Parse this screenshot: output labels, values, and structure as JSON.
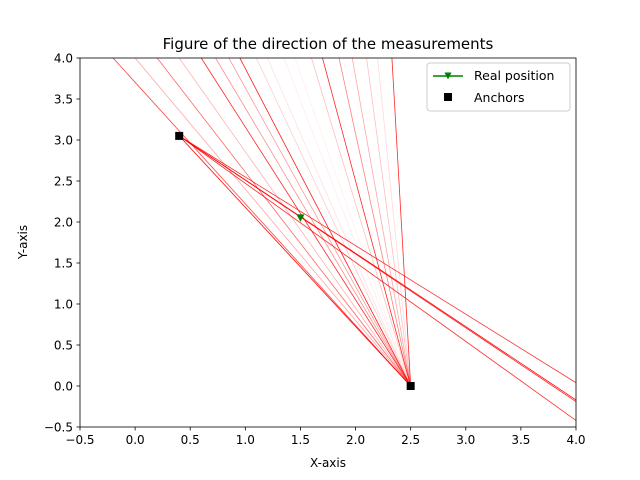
{
  "chart_data": {
    "type": "scatter",
    "title": "Figure of the direction of the measurements",
    "xlabel": "X-axis",
    "ylabel": "Y-axis",
    "xlim": [
      -0.5,
      4.0
    ],
    "ylim": [
      -0.5,
      4.0
    ],
    "xticks": [
      "−0.5",
      "0.0",
      "0.5",
      "1.0",
      "1.5",
      "2.0",
      "2.5",
      "3.0",
      "3.5",
      "4.0"
    ],
    "yticks": [
      "−0.5",
      "0.0",
      "0.5",
      "1.0",
      "1.5",
      "2.0",
      "2.5",
      "3.0",
      "3.5",
      "4.0"
    ],
    "grid": false,
    "legend_position": "top-right",
    "series": [
      {
        "name": "Real position",
        "marker": "triangle-down",
        "color": "#008000",
        "points": [
          {
            "x": 1.5,
            "y": 2.05
          }
        ]
      },
      {
        "name": "Anchors",
        "marker": "square",
        "color": "#000000",
        "points": [
          {
            "x": 0.4,
            "y": 3.05
          },
          {
            "x": 2.5,
            "y": 0.0
          }
        ]
      }
    ],
    "measurement_rays": {
      "color": "#ff0000",
      "from_anchor_1": [
        {
          "to": [
            4.0,
            0.04
          ],
          "opacity": 0.85
        },
        {
          "to": [
            4.0,
            -0.17
          ],
          "opacity": 0.95
        },
        {
          "to": [
            4.0,
            -0.19
          ],
          "opacity": 0.9
        },
        {
          "to": [
            4.0,
            -0.42
          ],
          "opacity": 0.85
        },
        {
          "to": [
            2.5,
            0.0
          ],
          "opacity": 0.7
        },
        {
          "to": [
            2.5,
            0.0
          ],
          "opacity": 0.5
        },
        {
          "to": [
            2.5,
            0.0
          ],
          "opacity": 0.35
        }
      ],
      "from_anchor_2": [
        {
          "to": [
            -0.2,
            4.0
          ],
          "opacity": 0.75
        },
        {
          "to": [
            0.0,
            4.0
          ],
          "opacity": 0.35
        },
        {
          "to": [
            0.2,
            4.0
          ],
          "opacity": 0.6
        },
        {
          "to": [
            0.4,
            4.0
          ],
          "opacity": 0.3
        },
        {
          "to": [
            0.6,
            4.0
          ],
          "opacity": 0.85
        },
        {
          "to": [
            0.73,
            4.0
          ],
          "opacity": 0.45
        },
        {
          "to": [
            0.85,
            4.0
          ],
          "opacity": 0.4
        },
        {
          "to": [
            0.95,
            4.0
          ],
          "opacity": 0.9
        },
        {
          "to": [
            1.1,
            4.0
          ],
          "opacity": 0.2
        },
        {
          "to": [
            1.2,
            4.0
          ],
          "opacity": 0.12
        },
        {
          "to": [
            1.35,
            4.0
          ],
          "opacity": 0.08
        },
        {
          "to": [
            1.45,
            4.0
          ],
          "opacity": 0.06
        },
        {
          "to": [
            1.6,
            4.0
          ],
          "opacity": 0.25
        },
        {
          "to": [
            1.7,
            4.0
          ],
          "opacity": 0.85
        },
        {
          "to": [
            1.85,
            4.0
          ],
          "opacity": 0.5
        },
        {
          "to": [
            1.97,
            4.0
          ],
          "opacity": 0.35
        },
        {
          "to": [
            2.1,
            4.0
          ],
          "opacity": 0.25
        },
        {
          "to": [
            2.2,
            4.0
          ],
          "opacity": 0.15
        },
        {
          "to": [
            2.33,
            4.0
          ],
          "opacity": 0.85
        }
      ]
    }
  }
}
